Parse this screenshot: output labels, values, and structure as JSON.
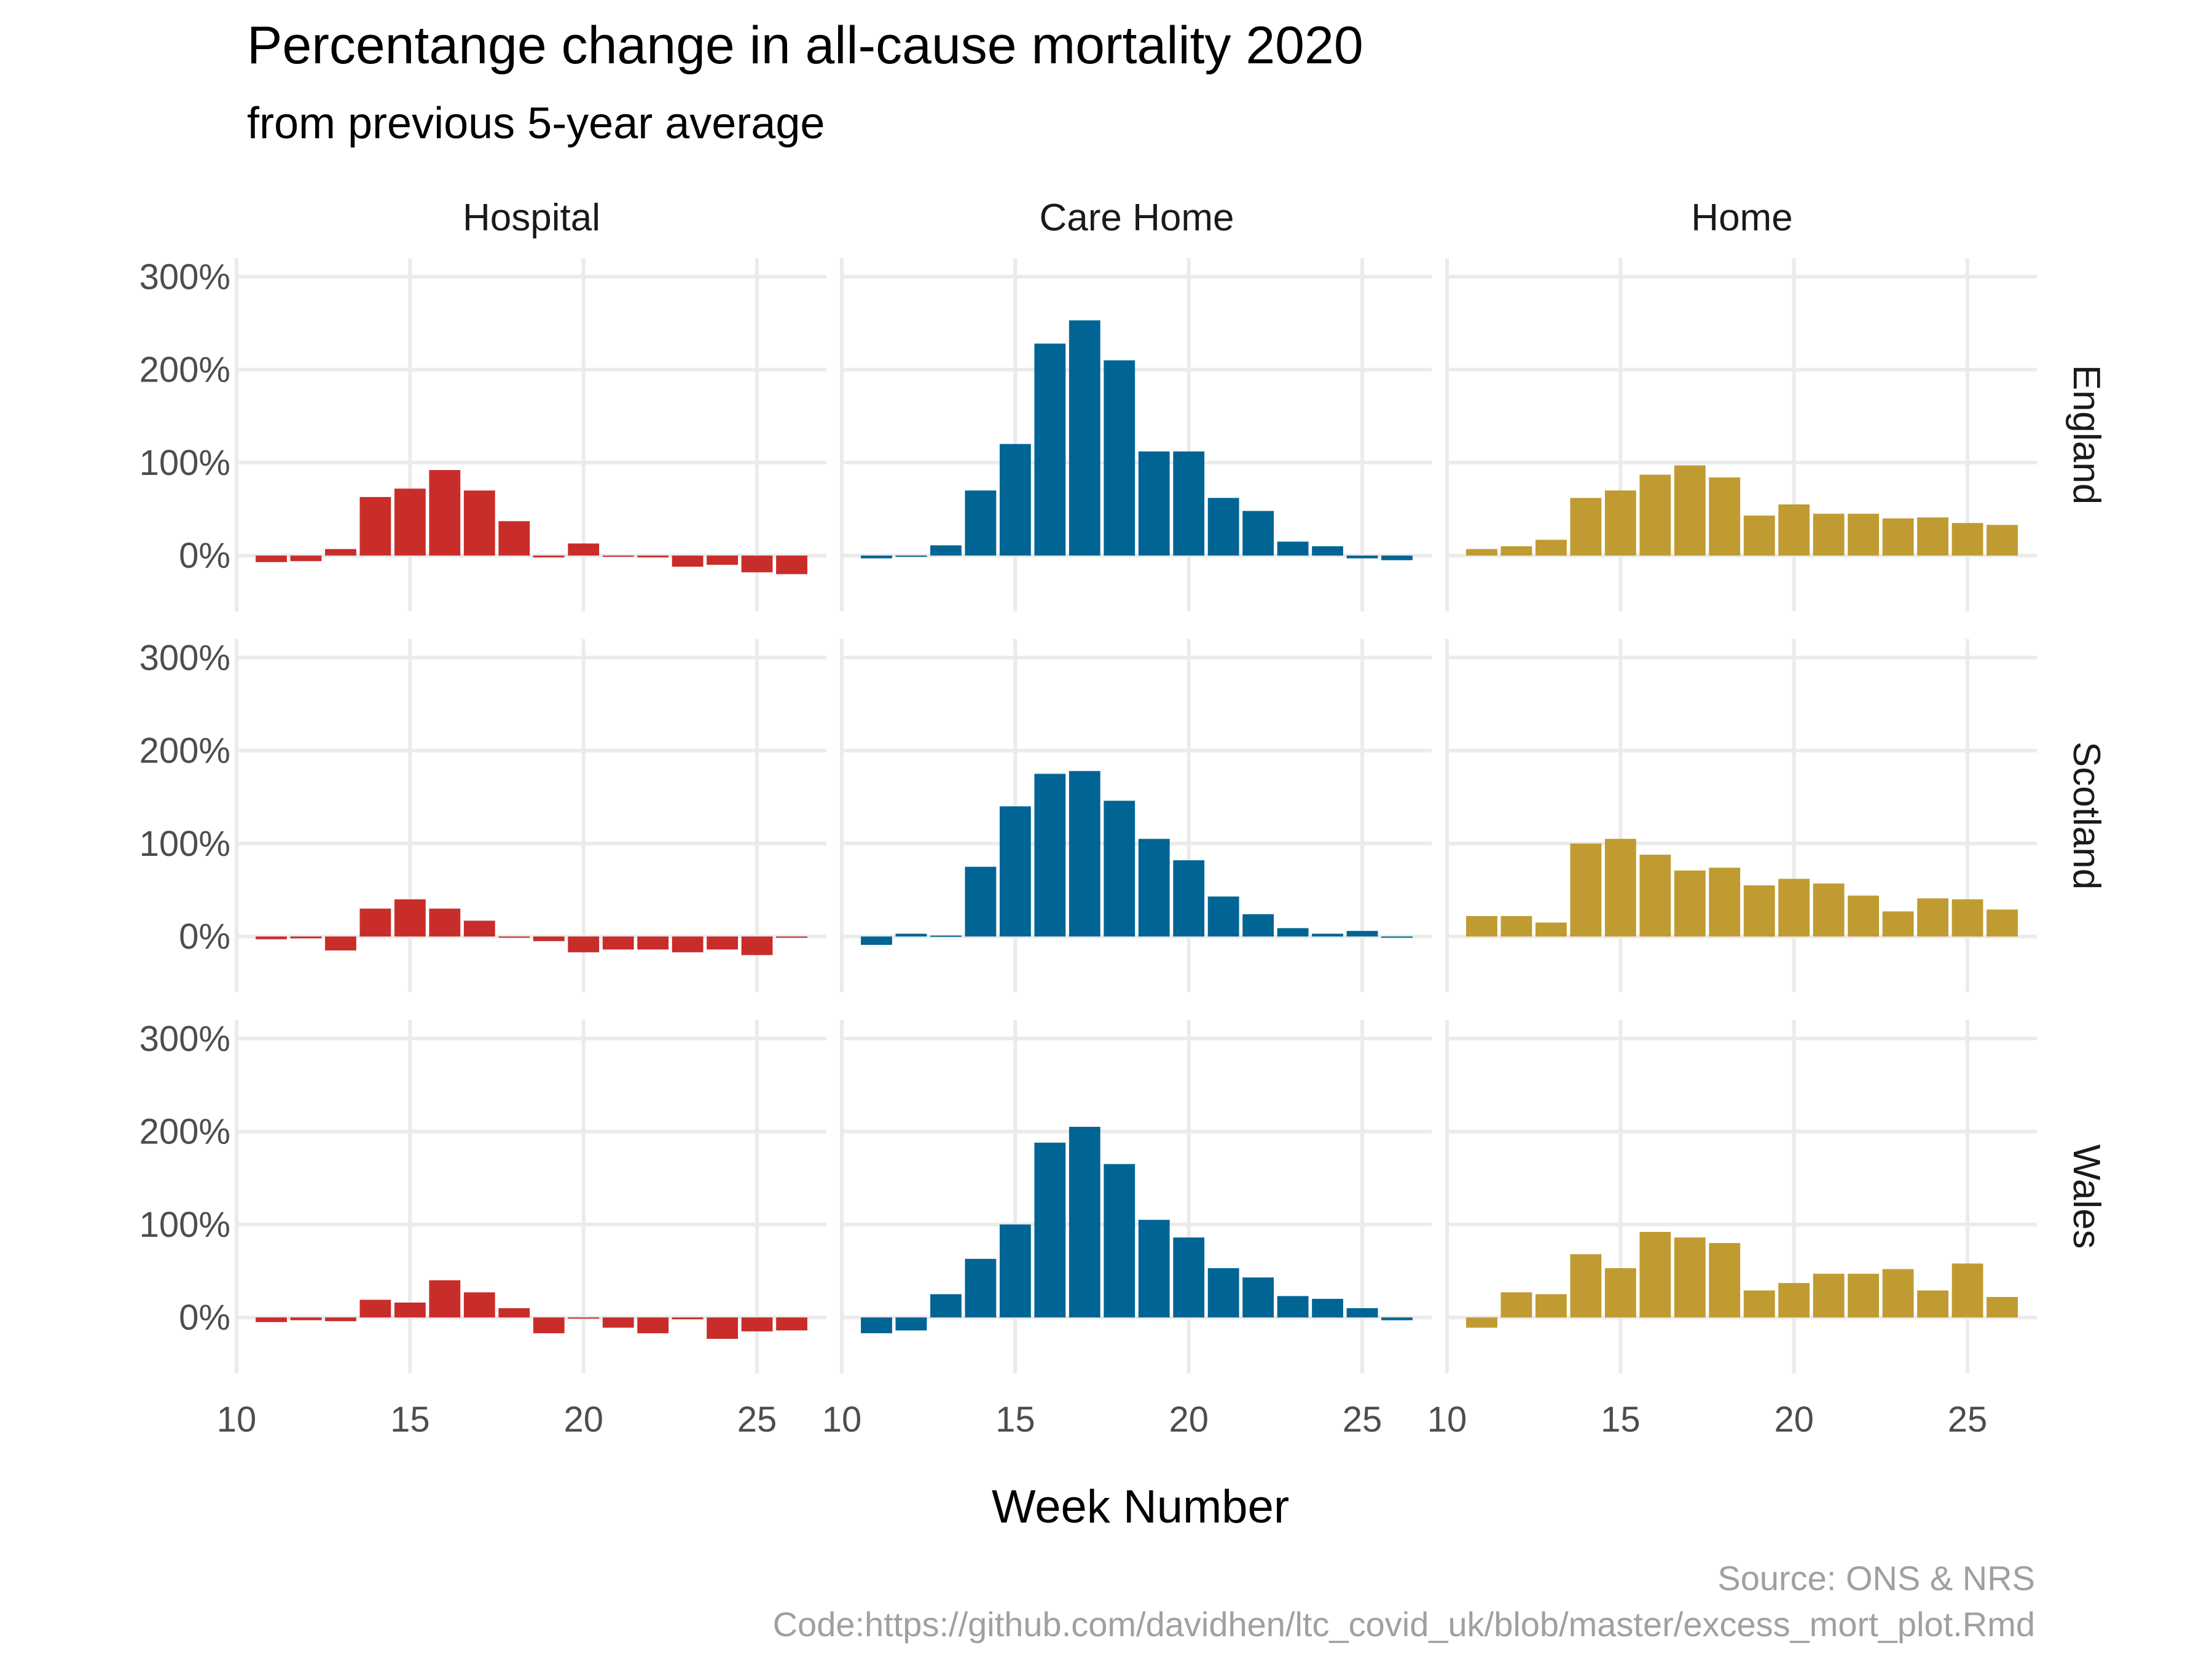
{
  "chart_data": {
    "type": "bar",
    "title": "Percentange change in all-cause mortality 2020",
    "subtitle": "from previous 5-year average",
    "xlabel": "Week Number",
    "ylabel": "",
    "caption": [
      "Source: ONS & NRS",
      "Code:https://github.com/davidhen/ltc_covid_uk/blob/master/excess_mort_plot.Rmd"
    ],
    "x_ticks": [
      10,
      15,
      20,
      25
    ],
    "y_ticks": [
      0,
      100,
      200,
      300
    ],
    "y_tick_labels": [
      "0%",
      "100%",
      "200%",
      "300%"
    ],
    "xlim": [
      10,
      27
    ],
    "ylim": [
      -60,
      320
    ],
    "grid": true,
    "legend": "none",
    "weeks": [
      11,
      12,
      13,
      14,
      15,
      16,
      17,
      18,
      19,
      20,
      21,
      22,
      23,
      24,
      25,
      26
    ],
    "columns": [
      {
        "name": "Hospital",
        "color": "#C92D2A"
      },
      {
        "name": "Care Home",
        "color": "#006595"
      },
      {
        "name": "Home",
        "color": "#BF9B31"
      }
    ],
    "rows": [
      "England",
      "Scotland",
      "Wales"
    ],
    "panels": [
      {
        "row": "England",
        "column": "Hospital",
        "values": [
          -7,
          -6,
          7,
          63,
          72,
          92,
          70,
          37,
          -2,
          13,
          0,
          -2,
          -12,
          -10,
          -18,
          -20
        ]
      },
      {
        "row": "England",
        "column": "Care Home",
        "values": [
          -3,
          0,
          11,
          70,
          120,
          228,
          253,
          210,
          112,
          112,
          62,
          48,
          15,
          10,
          -3,
          -5
        ]
      },
      {
        "row": "England",
        "column": "Home",
        "values": [
          7,
          10,
          17,
          62,
          70,
          87,
          97,
          84,
          43,
          55,
          45,
          45,
          40,
          41,
          35,
          33
        ]
      },
      {
        "row": "Scotland",
        "column": "Hospital",
        "values": [
          -3,
          -2,
          -15,
          30,
          40,
          30,
          17,
          -1,
          -5,
          -17,
          -14,
          -14,
          -17,
          -14,
          -20,
          0
        ]
      },
      {
        "row": "Scotland",
        "column": "Care Home",
        "values": [
          -9,
          3,
          1,
          75,
          140,
          175,
          178,
          146,
          105,
          82,
          43,
          24,
          9,
          3,
          6,
          -1
        ]
      },
      {
        "row": "Scotland",
        "column": "Home",
        "values": [
          22,
          22,
          15,
          100,
          105,
          88,
          71,
          74,
          55,
          62,
          57,
          44,
          27,
          41,
          40,
          29
        ]
      },
      {
        "row": "Wales",
        "column": "Hospital",
        "values": [
          -5,
          -3,
          -4,
          19,
          16,
          40,
          27,
          10,
          -17,
          0,
          -11,
          -17,
          -2,
          -23,
          -15,
          -14
        ]
      },
      {
        "row": "Wales",
        "column": "Care Home",
        "values": [
          -17,
          -14,
          25,
          63,
          100,
          188,
          205,
          165,
          105,
          86,
          53,
          43,
          23,
          20,
          10,
          -3
        ]
      },
      {
        "row": "Wales",
        "column": "Home",
        "values": [
          -11,
          27,
          25,
          68,
          53,
          92,
          86,
          80,
          29,
          37,
          47,
          47,
          52,
          29,
          58,
          22
        ]
      }
    ]
  }
}
